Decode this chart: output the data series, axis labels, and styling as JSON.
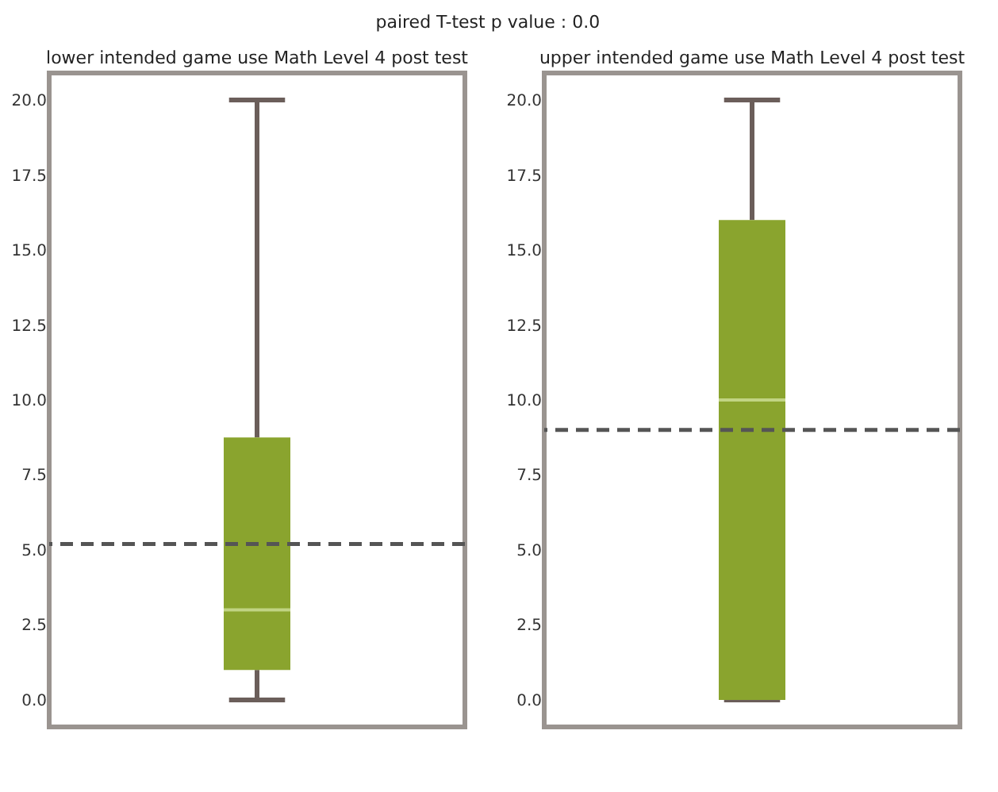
{
  "chart_data": [
    {
      "type": "box",
      "title": "lower intended game use Math Level 4 post test",
      "annotations": [
        "paired T-test p value : 0.0"
      ],
      "categories": [
        null
      ],
      "color": "#8aa42e",
      "boxes": [
        {
          "low": 0,
          "q1": 1.0,
          "median": 3.0,
          "q3": 8.75,
          "high": 20
        }
      ],
      "ylim": [
        -0.9,
        20.9
      ],
      "yticks": [
        {
          "value": 0,
          "label": "0.0"
        },
        2.5,
        {
          "value": 5,
          "label": "5.0"
        },
        7.5,
        {
          "value": 10,
          "label": "10.0"
        },
        12.5,
        {
          "value": 15,
          "label": "15.0"
        },
        17.5,
        {
          "value": 20,
          "label": "20.0"
        }
      ],
      "ref_lines": [
        {
          "axis": "y",
          "value": 5.2,
          "color": "#555555",
          "line_style": "dashed"
        }
      ],
      "tick_labels": "y",
      "grid": false
    },
    {
      "type": "box",
      "title": "upper intended game use Math Level 4 post test",
      "categories": [
        null
      ],
      "color": "#8aa42e",
      "boxes": [
        {
          "low": 0,
          "q1": 0,
          "median": 10.0,
          "q3": 16.0,
          "high": 20
        }
      ],
      "ylim": [
        -0.9,
        20.9
      ],
      "yticks": [
        {
          "value": 0,
          "label": "0.0"
        },
        2.5,
        {
          "value": 5,
          "label": "5.0"
        },
        7.5,
        {
          "value": 10,
          "label": "10.0"
        },
        12.5,
        {
          "value": 15,
          "label": "15.0"
        },
        17.5,
        {
          "value": 20,
          "label": "20.0"
        }
      ],
      "ref_lines": [
        {
          "axis": "y",
          "value": 9.0,
          "color": "#555555",
          "line_style": "dashed"
        }
      ],
      "tick_labels": "y",
      "grid": false
    }
  ]
}
